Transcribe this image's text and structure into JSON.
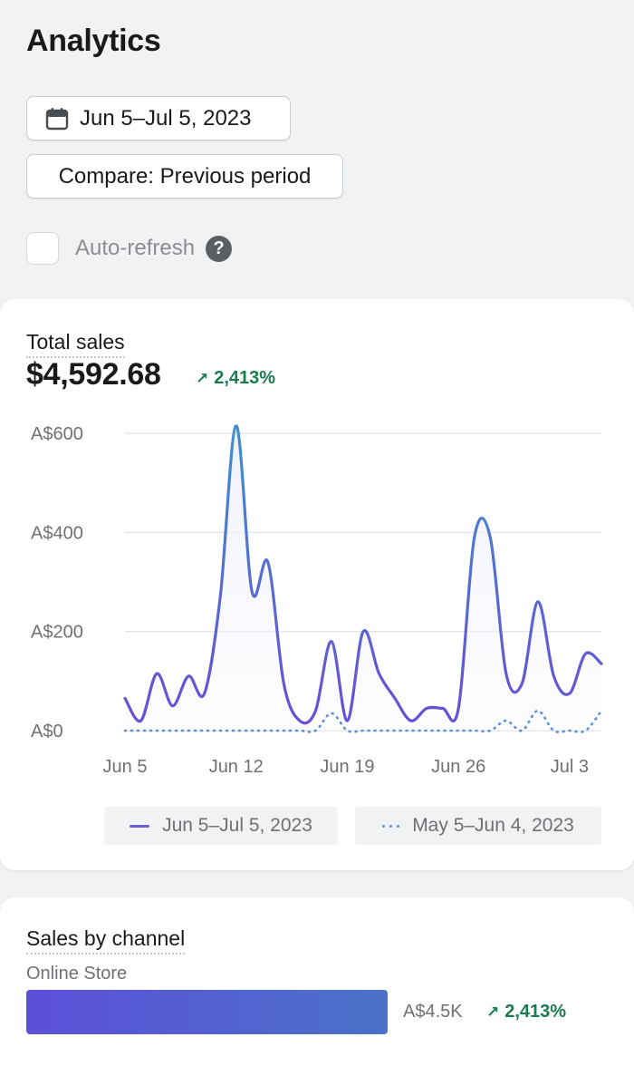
{
  "page": {
    "title": "Analytics"
  },
  "toolbar": {
    "date_range_label": "Jun 5–Jul 5, 2023",
    "compare_label": "Compare: Previous period",
    "auto_refresh_label": "Auto-refresh",
    "auto_refresh_checked": false,
    "help_glyph": "?"
  },
  "total_sales": {
    "title": "Total sales",
    "value": "$4,592.68",
    "change": "2,413%",
    "change_color": "#1b7a4f"
  },
  "chart_data": {
    "type": "line",
    "y_ticks": [
      "A$600",
      "A$400",
      "A$200",
      "A$0"
    ],
    "ylim": [
      0,
      600
    ],
    "x_ticks": [
      "Jun 5",
      "Jun 12",
      "Jun 19",
      "Jun 26",
      "Jul 3"
    ],
    "series": [
      {
        "name": "Jun 5–Jul 5, 2023",
        "style": "solid",
        "color": "#6a5dd3",
        "values": [
          65,
          20,
          115,
          50,
          110,
          75,
          270,
          615,
          280,
          340,
          95,
          20,
          40,
          180,
          20,
          200,
          115,
          65,
          20,
          45,
          45,
          45,
          390,
          390,
          115,
          95,
          260,
          110,
          75,
          155,
          135
        ]
      },
      {
        "name": "May 5–Jun 4, 2023",
        "style": "dotted",
        "color": "#5b8fd6",
        "values": [
          0,
          0,
          0,
          0,
          0,
          0,
          0,
          0,
          0,
          0,
          0,
          0,
          0,
          35,
          0,
          0,
          0,
          0,
          0,
          0,
          0,
          0,
          0,
          0,
          20,
          0,
          40,
          0,
          0,
          0,
          40
        ]
      }
    ]
  },
  "legend": {
    "current": "Jun 5–Jul 5, 2023",
    "previous": "May 5–Jun 4, 2023"
  },
  "sales_by_channel": {
    "title": "Sales by channel",
    "channel_name": "Online Store",
    "amount": "A$4.5K",
    "change": "2,413%",
    "share": 1.0
  },
  "icons": {
    "calendar": "calendar-icon",
    "help": "help-icon",
    "up_arrow": "arrow-up-right-icon"
  }
}
